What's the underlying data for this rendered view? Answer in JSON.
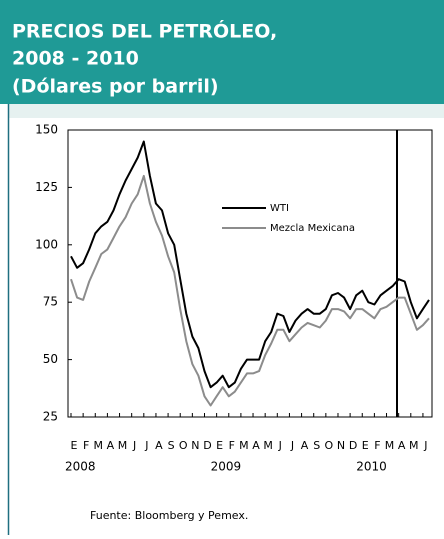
{
  "header": {
    "lines": [
      "PRECIOS DEL PETRÓLEO,",
      "2008 - 2010",
      "(Dólares por barril)"
    ]
  },
  "chart_data": {
    "type": "line",
    "categories": [
      "E",
      null,
      "F",
      null,
      "M",
      null,
      "A",
      null,
      "M",
      null,
      "J",
      null,
      "J",
      null,
      "A",
      null,
      "S",
      null,
      "O",
      null,
      "N",
      null,
      "D",
      null,
      "E",
      null,
      "F",
      null,
      "M",
      null,
      "A",
      null,
      "M",
      null,
      "J",
      null,
      "J",
      null,
      "A",
      null,
      "S",
      null,
      "O",
      null,
      "N",
      null,
      "D",
      null,
      "E",
      null,
      "F",
      null,
      "M",
      null,
      "A",
      null,
      "M",
      null,
      "J",
      null
    ],
    "year_labels": [
      "2008",
      "2009",
      "2010"
    ],
    "series": [
      {
        "name": "WTI",
        "color": "#000000",
        "values": [
          95,
          90,
          92,
          98,
          105,
          108,
          110,
          115,
          122,
          128,
          133,
          138,
          145,
          130,
          118,
          115,
          105,
          100,
          85,
          70,
          60,
          55,
          45,
          38,
          40,
          43,
          38,
          40,
          46,
          50,
          50,
          50,
          58,
          62,
          70,
          69,
          62,
          67,
          70,
          72,
          70,
          70,
          72,
          78,
          79,
          77,
          72,
          78,
          80,
          75,
          74,
          78,
          80,
          82,
          85,
          84,
          75,
          68,
          72,
          76
        ]
      },
      {
        "name": "Mezcla Mexicana",
        "color": "#8c8c8c",
        "values": [
          85,
          77,
          76,
          84,
          90,
          96,
          98,
          103,
          108,
          112,
          118,
          122,
          130,
          118,
          110,
          104,
          95,
          88,
          72,
          58,
          48,
          43,
          34,
          30,
          34,
          38,
          34,
          36,
          40,
          44,
          44,
          45,
          52,
          57,
          63,
          63,
          58,
          61,
          64,
          66,
          65,
          64,
          67,
          72,
          72,
          71,
          68,
          72,
          72,
          70,
          68,
          72,
          73,
          75,
          77,
          77,
          70,
          63,
          65,
          68
        ]
      }
    ],
    "ylim": [
      25,
      150
    ],
    "yticks": [
      25,
      50,
      75,
      100,
      125,
      150
    ],
    "source": "Fuente: Bloomberg y Pemex."
  }
}
